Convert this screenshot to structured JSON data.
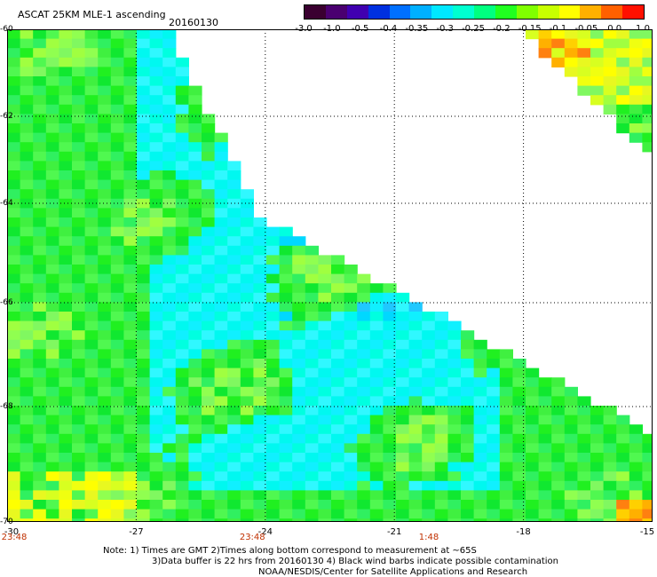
{
  "header": {
    "title": "ASCAT 25KM MLE-1 ascending",
    "date": "20160130"
  },
  "colorbar": {
    "colors": [
      "#3a0030",
      "#4a0070",
      "#4000b0",
      "#0030e0",
      "#0070ff",
      "#00b0ff",
      "#00e8ff",
      "#00ffd0",
      "#00ff80",
      "#20ff20",
      "#80ff00",
      "#c8ff00",
      "#ffff00",
      "#ffb000",
      "#ff6000",
      "#ff1000"
    ],
    "labels": [
      "-3.0",
      "-1.0",
      "-0.5",
      "-0.4",
      "-0.35",
      "-0.3",
      "-0.25",
      "-0.2",
      "-0.15",
      "-0.1",
      "-0.05",
      "0.0",
      "1.0"
    ]
  },
  "map": {
    "lat_labels": [
      "-60",
      "-62",
      "-64",
      "-66",
      "-68",
      "-70"
    ],
    "lat_values": [
      -60,
      -62,
      -64,
      -66,
      -68,
      -70
    ],
    "lon_labels": [
      "-30",
      "-27",
      "-24",
      "-21",
      "-18",
      "-15"
    ],
    "lon_values": [
      -30,
      -27,
      -24,
      -21,
      -18,
      -15
    ],
    "time_labels": [
      "23:48",
      "23:48",
      "1:48"
    ],
    "time_lons": [
      -30,
      -24.3,
      -20.2
    ]
  },
  "notes": {
    "line1": "Note: 1) Times are GMT 2)Times along bottom correspond to measurement at ~65S",
    "line2": "3)Data buffer is 22 hrs from 20160130 4) Black wind barbs indicate possible contamination",
    "line3": "NOAA/NESDIS/Center for Satellite Applications and Research"
  }
}
